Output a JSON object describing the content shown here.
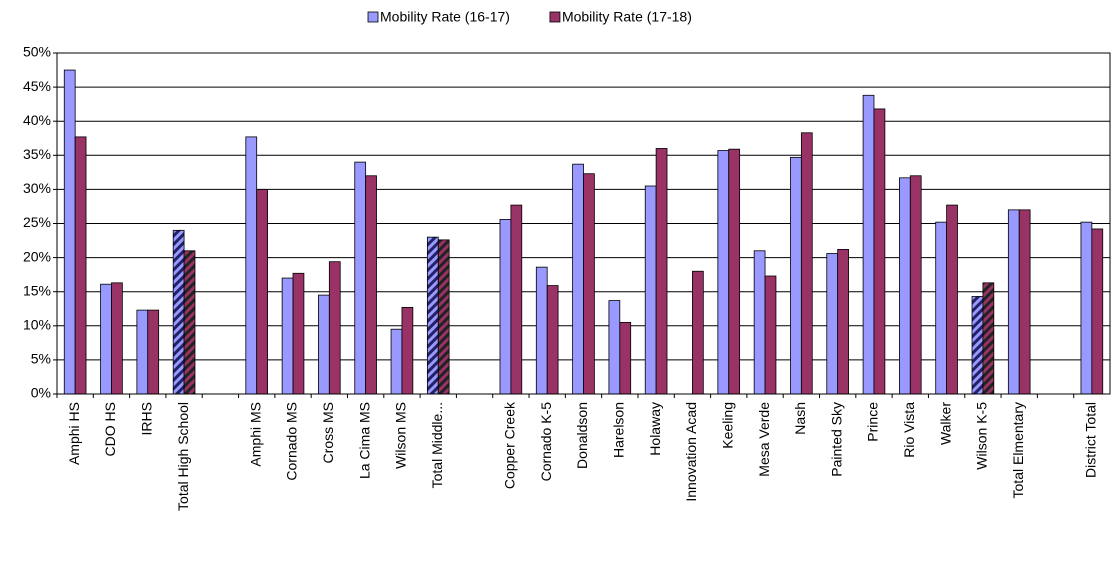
{
  "chart_data": {
    "type": "bar",
    "categories": [
      "Amphi HS",
      "CDO HS",
      "IRHS",
      "Total High School",
      null,
      "Amphi MS",
      "Cornado MS",
      "Cross MS",
      "La Cima MS",
      "Wilson MS",
      "Total Middle...",
      null,
      "Copper Creek",
      "Cornado K-5",
      "Donaldson",
      "Harelson",
      "Holaway",
      "Innovation Acad",
      "Keeling",
      "Mesa Verde",
      "Nash",
      "Painted Sky",
      "Prince",
      "Rio Vista",
      "Walker",
      "Wilson K-5",
      "Total Elmentary",
      null,
      "District Total"
    ],
    "series": [
      {
        "name": "Mobility Rate (16-17)",
        "color": "#9999ff",
        "values": [
          47.5,
          16.1,
          12.3,
          24,
          null,
          37.7,
          17,
          14.5,
          34,
          9.5,
          23,
          null,
          25.6,
          18.6,
          33.7,
          13.7,
          30.5,
          null,
          35.7,
          21,
          34.7,
          20.6,
          43.8,
          31.7,
          25.2,
          14.3,
          27,
          null,
          25.2
        ]
      },
      {
        "name": "Mobility Rate (17-18)",
        "color": "#993366",
        "values": [
          37.7,
          16.3,
          12.3,
          21,
          null,
          30,
          17.7,
          19.4,
          32,
          12.7,
          22.6,
          null,
          27.7,
          15.9,
          32.3,
          10.5,
          36,
          18,
          35.9,
          17.3,
          38.3,
          21.2,
          41.8,
          32,
          27.7,
          16.3,
          27,
          null,
          24.2
        ]
      }
    ],
    "hatched": [
      3,
      10,
      25
    ],
    "ylim": [
      0,
      50
    ],
    "yticks": [
      {
        "value": 0,
        "label": "0%"
      },
      {
        "value": 5,
        "label": "5%"
      },
      {
        "value": 10,
        "label": "10%"
      },
      {
        "value": 15,
        "label": "15%"
      },
      {
        "value": 20,
        "label": "20%"
      },
      {
        "value": 25,
        "label": "25%"
      },
      {
        "value": 30,
        "label": "30%"
      },
      {
        "value": 35,
        "label": "35%"
      },
      {
        "value": 40,
        "label": "40%"
      },
      {
        "value": 45,
        "label": "45%"
      },
      {
        "value": 50,
        "label": "50%"
      }
    ],
    "grid": true,
    "legend": "top"
  }
}
